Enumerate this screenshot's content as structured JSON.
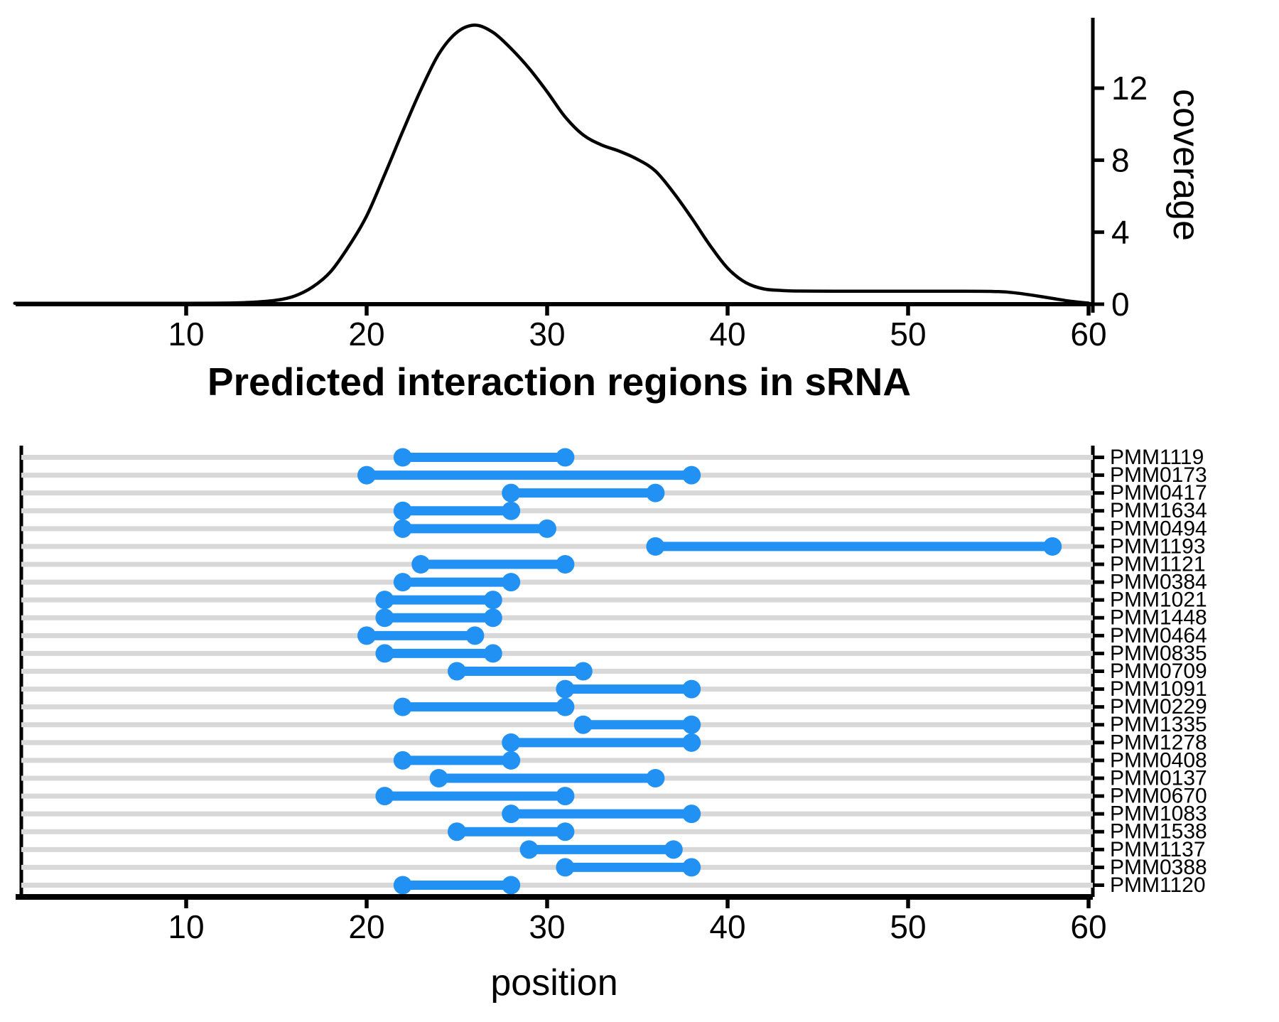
{
  "title": "Predicted interaction regions in sRNA",
  "colors": {
    "accent": "#2191f3",
    "grid": "#d8d8d8",
    "axis": "#000000",
    "curve": "#000000"
  },
  "chart_data": [
    {
      "type": "line",
      "name": "coverage-density",
      "ylabel": "coverage",
      "xlabel": "",
      "yticks": [
        0,
        4,
        8,
        12
      ],
      "xticks": [
        10,
        20,
        30,
        40,
        50,
        60
      ],
      "xlim": [
        0.5,
        60.2
      ],
      "ylim": [
        0,
        16.2
      ],
      "grid": false,
      "curve": [
        [
          0.5,
          0.05
        ],
        [
          5,
          0.05
        ],
        [
          10,
          0.05
        ],
        [
          12,
          0.06
        ],
        [
          13.5,
          0.1
        ],
        [
          15,
          0.22
        ],
        [
          16,
          0.45
        ],
        [
          17,
          0.95
        ],
        [
          18,
          1.8
        ],
        [
          19,
          3.2
        ],
        [
          20,
          4.9
        ],
        [
          21,
          7.2
        ],
        [
          22,
          9.6
        ],
        [
          23,
          11.9
        ],
        [
          24,
          13.9
        ],
        [
          25,
          15.1
        ],
        [
          26,
          15.5
        ],
        [
          27,
          15.1
        ],
        [
          28,
          14.2
        ],
        [
          29,
          13.1
        ],
        [
          30,
          11.8
        ],
        [
          31,
          10.4
        ],
        [
          32,
          9.4
        ],
        [
          33,
          8.85
        ],
        [
          34,
          8.5
        ],
        [
          35,
          8.05
        ],
        [
          36,
          7.4
        ],
        [
          37,
          6.2
        ],
        [
          38,
          4.8
        ],
        [
          39,
          3.3
        ],
        [
          40,
          2.0
        ],
        [
          41,
          1.2
        ],
        [
          42,
          0.85
        ],
        [
          43,
          0.76
        ],
        [
          44,
          0.73
        ],
        [
          47,
          0.72
        ],
        [
          50,
          0.72
        ],
        [
          53,
          0.72
        ],
        [
          55,
          0.7
        ],
        [
          56,
          0.62
        ],
        [
          57,
          0.48
        ],
        [
          58,
          0.32
        ],
        [
          59,
          0.16
        ],
        [
          60,
          0.06
        ]
      ]
    },
    {
      "type": "segment",
      "name": "predicted-interaction-regions",
      "xlabel": "position",
      "xticks": [
        10,
        20,
        30,
        40,
        50,
        60
      ],
      "xlim": [
        0.5,
        60.2
      ],
      "rows": [
        {
          "label": "PMM1119",
          "start": 22,
          "end": 31
        },
        {
          "label": "PMM0173",
          "start": 20,
          "end": 38
        },
        {
          "label": "PMM0417",
          "start": 28,
          "end": 36
        },
        {
          "label": "PMM1634",
          "start": 22,
          "end": 28
        },
        {
          "label": "PMM0494",
          "start": 22,
          "end": 30
        },
        {
          "label": "PMM1193",
          "start": 36,
          "end": 58
        },
        {
          "label": "PMM1121",
          "start": 23,
          "end": 31
        },
        {
          "label": "PMM0384",
          "start": 22,
          "end": 28
        },
        {
          "label": "PMM1021",
          "start": 21,
          "end": 27
        },
        {
          "label": "PMM1448",
          "start": 21,
          "end": 27
        },
        {
          "label": "PMM0464",
          "start": 20,
          "end": 26
        },
        {
          "label": "PMM0835",
          "start": 21,
          "end": 27
        },
        {
          "label": "PMM0709",
          "start": 25,
          "end": 32
        },
        {
          "label": "PMM1091",
          "start": 31,
          "end": 38
        },
        {
          "label": "PMM0229",
          "start": 22,
          "end": 31
        },
        {
          "label": "PMM1335",
          "start": 32,
          "end": 38
        },
        {
          "label": "PMM1278",
          "start": 28,
          "end": 38
        },
        {
          "label": "PMM0408",
          "start": 22,
          "end": 28
        },
        {
          "label": "PMM0137",
          "start": 24,
          "end": 36
        },
        {
          "label": "PMM0670",
          "start": 21,
          "end": 31
        },
        {
          "label": "PMM1083",
          "start": 28,
          "end": 38
        },
        {
          "label": "PMM1538",
          "start": 25,
          "end": 31
        },
        {
          "label": "PMM1137",
          "start": 29,
          "end": 37
        },
        {
          "label": "PMM0388",
          "start": 31,
          "end": 38
        },
        {
          "label": "PMM1120",
          "start": 22,
          "end": 28
        }
      ]
    }
  ]
}
